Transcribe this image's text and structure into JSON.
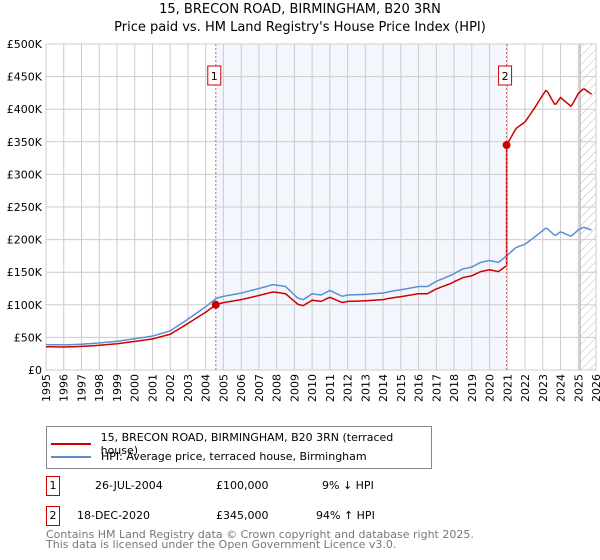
{
  "title": "15, BRECON ROAD, BIRMINGHAM, B20 3RN",
  "subtitle": "Price paid vs. HM Land Registry's House Price Index (HPI)",
  "chart_data": {
    "type": "line",
    "xlim": [
      1995,
      2026
    ],
    "ylim": [
      0,
      500000
    ],
    "xticks": [
      "1995",
      "1996",
      "1997",
      "1998",
      "1999",
      "2000",
      "2001",
      "2002",
      "2003",
      "2004",
      "2005",
      "2006",
      "2007",
      "2008",
      "2009",
      "2010",
      "2011",
      "2012",
      "2013",
      "2014",
      "2015",
      "2016",
      "2017",
      "2018",
      "2019",
      "2020",
      "2021",
      "2022",
      "2023",
      "2024",
      "2025",
      "2026"
    ],
    "yticks": [
      "£0",
      "£50K",
      "£100K",
      "£150K",
      "£200K",
      "£250K",
      "£300K",
      "£350K",
      "£400K",
      "£450K",
      "£500K"
    ],
    "hpi": {
      "name": "HPI: Average price, terraced house, Birmingham",
      "color": "#5b8fd0",
      "x": [
        1995,
        1996,
        1997,
        1998,
        1999,
        2000,
        2001,
        2002,
        2003,
        2004,
        2004.6,
        2005,
        2006,
        2007,
        2007.8,
        2008.5,
        2009.2,
        2009.5,
        2010,
        2010.5,
        2011,
        2011.7,
        2012,
        2013,
        2014,
        2014.5,
        2015,
        2016,
        2016.5,
        2017,
        2017.8,
        2018.5,
        2019,
        2019.5,
        2020,
        2020.5,
        2020.96,
        2021.5,
        2022,
        2022.5,
        2023,
        2023.2,
        2023.7,
        2024,
        2024.6,
        2025,
        2025.3,
        2025.8
      ],
      "y": [
        39000,
        38500,
        39500,
        41500,
        44000,
        48000,
        52000,
        60000,
        78000,
        97000,
        110000,
        113000,
        118000,
        125000,
        131000,
        128000,
        110000,
        108000,
        117000,
        115000,
        122000,
        113000,
        115000,
        116000,
        118000,
        121000,
        123000,
        128000,
        128000,
        136000,
        145000,
        155000,
        158000,
        165000,
        168000,
        165000,
        175000,
        188000,
        193000,
        203000,
        214000,
        218000,
        206000,
        212000,
        205000,
        215000,
        219000,
        214000
      ]
    },
    "property": {
      "name": "15, BRECON ROAD, BIRMINGHAM, B20 3RN (terraced house)",
      "color": "#cc0000"
    },
    "sales": [
      {
        "label": "1",
        "x": 2004.57,
        "price": 100000,
        "date": "26-JUL-2004",
        "price_text": "£100,000",
        "hpi_text": "9% ↓ HPI"
      },
      {
        "label": "2",
        "x": 2020.96,
        "price": 345000,
        "date": "18-DEC-2020",
        "price_text": "£345,000",
        "hpi_text": "94% ↑ HPI"
      }
    ],
    "forecast_start": 2025.1
  },
  "footer": [
    "Contains HM Land Registry data © Crown copyright and database right 2025.",
    "This data is licensed under the Open Government Licence v3.0."
  ]
}
